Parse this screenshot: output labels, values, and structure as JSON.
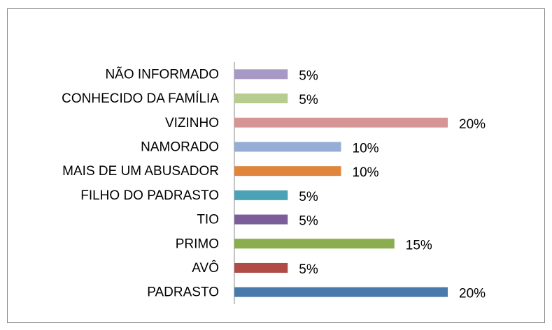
{
  "chart_data": {
    "type": "barh",
    "categories": [
      "NÃO INFORMADO",
      "CONHECIDO DA FAMÍLIA",
      "VIZINHO",
      "NAMORADO",
      "MAIS DE UM ABUSADOR",
      "FILHO DO PADRASTO",
      "TIO",
      "PRIMO",
      "AVÔ",
      "PADRASTO"
    ],
    "values": [
      5,
      5,
      20,
      10,
      10,
      5,
      5,
      15,
      5,
      20
    ],
    "value_labels": [
      "5%",
      "5%",
      "20%",
      "10%",
      "10%",
      "5%",
      "5%",
      "15%",
      "5%",
      "20%"
    ],
    "colors": [
      "#a69ac4",
      "#b6cd8f",
      "#d59595",
      "#96aed5",
      "#e0863c",
      "#4ba1b6",
      "#7b5d9b",
      "#8bad4f",
      "#b14b46",
      "#4a79ac"
    ]
  }
}
